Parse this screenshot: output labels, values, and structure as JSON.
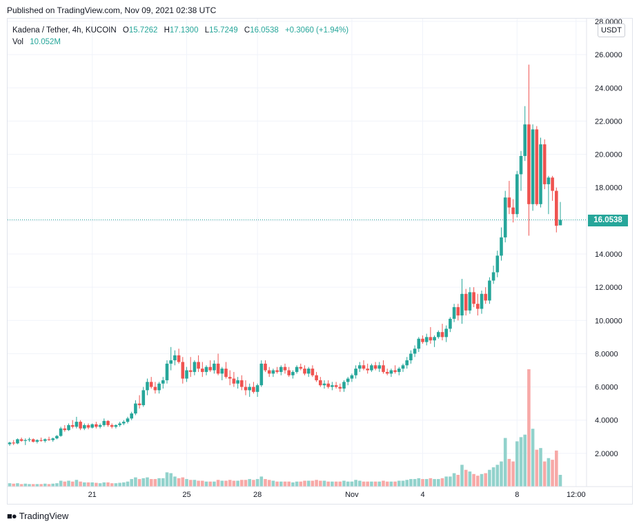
{
  "header": {
    "published": "Published on TradingView.com, Nov 09, 2021 02:38 UTC"
  },
  "legend": {
    "symbol": "Kadena / Tether, 4h, KUCOIN",
    "o_label": "O",
    "o_value": "15.7262",
    "h_label": "H",
    "h_value": "17.1300",
    "l_label": "L",
    "l_value": "15.7249",
    "c_label": "C",
    "c_value": "16.0538",
    "change": "+0.3060 (+1.94%)",
    "vol_label": "Vol",
    "vol_value": "10.052M"
  },
  "price_axis": {
    "currency": "USDT",
    "last_price_label": "16.0538"
  },
  "footer": {
    "brand": "TradingView"
  },
  "colors": {
    "up": "#26a69a",
    "down": "#ef5350",
    "up_volume": "#92d2cc",
    "down_volume": "#f7a9a7",
    "grid": "#f0f3fa"
  },
  "chart_data": {
    "type": "candlestick",
    "symbol": "Kadena / Tether",
    "interval": "4h",
    "exchange": "KUCOIN",
    "last_price": 16.0538,
    "ylim": [
      0,
      28
    ],
    "y_ticks": [
      "2.0000",
      "4.0000",
      "6.0000",
      "8.0000",
      "10.0000",
      "12.0000",
      "14.0000",
      "16.0000",
      "18.0000",
      "20.0000",
      "22.0000",
      "24.0000",
      "26.0000",
      "28.0000"
    ],
    "y_tick_values": [
      2,
      4,
      6,
      8,
      10,
      12,
      14,
      16,
      18,
      20,
      22,
      24,
      26,
      28
    ],
    "x_ticks": [
      {
        "label": "21",
        "bar": 21
      },
      {
        "label": "25",
        "bar": 45
      },
      {
        "label": "28",
        "bar": 63
      },
      {
        "label": "Nov",
        "bar": 87
      },
      {
        "label": "4",
        "bar": 105
      },
      {
        "label": "8",
        "bar": 129
      },
      {
        "label": "12:00",
        "bar": 144
      }
    ],
    "grid": true,
    "ohlcv": [
      [
        2.55,
        2.7,
        2.45,
        2.65,
        0.4
      ],
      [
        2.65,
        2.8,
        2.5,
        2.6,
        0.35
      ],
      [
        2.6,
        2.9,
        2.55,
        2.85,
        0.4
      ],
      [
        2.85,
        2.95,
        2.7,
        2.75,
        0.3
      ],
      [
        2.75,
        2.9,
        2.5,
        2.8,
        0.35
      ],
      [
        2.8,
        2.95,
        2.7,
        2.85,
        0.3
      ],
      [
        2.85,
        2.9,
        2.65,
        2.7,
        0.3
      ],
      [
        2.7,
        2.85,
        2.6,
        2.8,
        0.3
      ],
      [
        2.8,
        2.95,
        2.7,
        2.75,
        0.3
      ],
      [
        2.75,
        2.9,
        2.65,
        2.85,
        0.35
      ],
      [
        2.85,
        3.0,
        2.75,
        2.8,
        0.3
      ],
      [
        2.8,
        2.95,
        2.7,
        2.9,
        0.35
      ],
      [
        2.9,
        3.1,
        2.85,
        3.05,
        0.4
      ],
      [
        3.05,
        3.6,
        3.0,
        3.5,
        0.7
      ],
      [
        3.5,
        3.7,
        3.3,
        3.4,
        0.6
      ],
      [
        3.4,
        3.8,
        3.35,
        3.7,
        0.7
      ],
      [
        3.7,
        4.0,
        3.5,
        3.6,
        0.6
      ],
      [
        3.6,
        4.2,
        3.5,
        3.9,
        0.8
      ],
      [
        3.9,
        4.0,
        3.4,
        3.5,
        0.6
      ],
      [
        3.5,
        3.8,
        3.4,
        3.7,
        0.5
      ],
      [
        3.7,
        3.8,
        3.45,
        3.55,
        0.5
      ],
      [
        3.55,
        3.8,
        3.5,
        3.75,
        0.5
      ],
      [
        3.75,
        3.9,
        3.5,
        3.6,
        0.45
      ],
      [
        3.6,
        3.8,
        3.5,
        3.7,
        0.4
      ],
      [
        3.7,
        4.1,
        3.6,
        3.95,
        0.5
      ],
      [
        3.95,
        4.0,
        3.6,
        3.7,
        0.5
      ],
      [
        3.7,
        3.8,
        3.5,
        3.6,
        0.4
      ],
      [
        3.6,
        3.75,
        3.5,
        3.7,
        0.4
      ],
      [
        3.7,
        3.9,
        3.6,
        3.8,
        0.45
      ],
      [
        3.8,
        4.0,
        3.7,
        3.9,
        0.5
      ],
      [
        3.9,
        4.2,
        3.8,
        4.1,
        0.6
      ],
      [
        4.1,
        4.5,
        4.0,
        4.4,
        0.9
      ],
      [
        4.4,
        5.2,
        4.3,
        5.0,
        1.1
      ],
      [
        5.0,
        5.5,
        4.7,
        4.9,
        0.9
      ],
      [
        4.9,
        6.0,
        4.8,
        5.8,
        1.0
      ],
      [
        5.8,
        6.5,
        5.5,
        6.3,
        1.1
      ],
      [
        6.3,
        6.6,
        5.9,
        6.0,
        0.9
      ],
      [
        6.0,
        6.3,
        5.6,
        5.8,
        0.9
      ],
      [
        5.8,
        6.3,
        5.6,
        6.2,
        1.0
      ],
      [
        6.2,
        6.6,
        5.9,
        6.4,
        1.0
      ],
      [
        6.4,
        7.6,
        6.2,
        7.4,
        1.7
      ],
      [
        7.4,
        8.4,
        7.0,
        7.6,
        1.6
      ],
      [
        7.6,
        8.2,
        7.3,
        7.9,
        1.2
      ],
      [
        7.9,
        8.3,
        7.4,
        7.5,
        1.0
      ],
      [
        7.5,
        7.8,
        6.2,
        6.5,
        1.1
      ],
      [
        6.5,
        7.2,
        6.3,
        7.0,
        0.9
      ],
      [
        7.0,
        7.8,
        6.6,
        6.9,
        0.8
      ],
      [
        6.9,
        7.6,
        6.7,
        7.5,
        0.8
      ],
      [
        7.5,
        7.9,
        6.9,
        7.1,
        0.7
      ],
      [
        7.1,
        7.5,
        6.6,
        6.9,
        0.7
      ],
      [
        6.9,
        7.3,
        6.7,
        7.2,
        0.6
      ],
      [
        7.2,
        7.6,
        6.9,
        7.0,
        0.6
      ],
      [
        7.0,
        7.6,
        6.8,
        7.4,
        0.6
      ],
      [
        7.4,
        8.0,
        6.7,
        6.8,
        0.8
      ],
      [
        6.8,
        7.2,
        6.4,
        7.1,
        0.7
      ],
      [
        7.1,
        7.5,
        6.5,
        6.6,
        0.7
      ],
      [
        6.6,
        7.0,
        6.1,
        6.5,
        0.8
      ],
      [
        6.5,
        6.9,
        6.0,
        6.2,
        0.7
      ],
      [
        6.2,
        6.6,
        5.9,
        6.4,
        0.7
      ],
      [
        6.4,
        6.7,
        5.8,
        6.0,
        0.8
      ],
      [
        6.0,
        6.4,
        5.5,
        5.8,
        0.8
      ],
      [
        5.8,
        6.2,
        5.4,
        6.0,
        0.9
      ],
      [
        6.0,
        6.3,
        5.6,
        5.7,
        0.8
      ],
      [
        5.7,
        6.2,
        5.4,
        6.1,
        0.9
      ],
      [
        6.1,
        7.6,
        6.0,
        7.4,
        1.2
      ],
      [
        7.4,
        7.6,
        6.9,
        7.0,
        0.9
      ],
      [
        7.0,
        7.2,
        6.6,
        6.8,
        0.8
      ],
      [
        6.8,
        7.1,
        6.6,
        7.0,
        0.7
      ],
      [
        7.0,
        7.2,
        6.8,
        6.9,
        0.6
      ],
      [
        6.9,
        7.3,
        6.7,
        7.2,
        0.6
      ],
      [
        7.2,
        7.4,
        6.8,
        7.0,
        0.6
      ],
      [
        7.0,
        7.2,
        6.6,
        6.7,
        0.6
      ],
      [
        6.7,
        7.0,
        6.5,
        6.9,
        0.5
      ],
      [
        6.9,
        7.3,
        6.8,
        7.2,
        0.6
      ],
      [
        7.2,
        7.4,
        7.0,
        7.1,
        0.6
      ],
      [
        7.1,
        7.3,
        6.7,
        6.8,
        0.7
      ],
      [
        6.8,
        7.2,
        6.6,
        7.1,
        0.7
      ],
      [
        7.1,
        7.3,
        6.6,
        6.7,
        0.7
      ],
      [
        6.7,
        6.9,
        6.3,
        6.4,
        0.8
      ],
      [
        6.4,
        6.6,
        6.0,
        6.1,
        0.7
      ],
      [
        6.1,
        6.4,
        5.9,
        6.2,
        0.7
      ],
      [
        6.2,
        6.4,
        5.9,
        6.0,
        0.6
      ],
      [
        6.0,
        6.3,
        5.8,
        6.1,
        0.6
      ],
      [
        6.1,
        6.3,
        5.9,
        6.0,
        0.6
      ],
      [
        6.0,
        6.2,
        5.7,
        5.9,
        0.6
      ],
      [
        5.9,
        6.4,
        5.7,
        6.3,
        0.7
      ],
      [
        6.3,
        6.6,
        6.1,
        6.5,
        0.6
      ],
      [
        6.5,
        6.8,
        6.3,
        6.7,
        0.6
      ],
      [
        6.7,
        7.3,
        6.5,
        7.1,
        0.8
      ],
      [
        7.1,
        7.5,
        6.9,
        7.3,
        0.7
      ],
      [
        7.3,
        7.6,
        7.0,
        7.1,
        0.6
      ],
      [
        7.1,
        7.4,
        6.8,
        7.0,
        0.6
      ],
      [
        7.0,
        7.4,
        6.9,
        7.3,
        0.6
      ],
      [
        7.3,
        7.5,
        7.0,
        7.1,
        0.6
      ],
      [
        7.1,
        7.5,
        6.9,
        7.3,
        0.6
      ],
      [
        7.3,
        7.6,
        6.8,
        6.9,
        0.7
      ],
      [
        6.9,
        7.1,
        6.7,
        6.8,
        0.6
      ],
      [
        6.8,
        7.1,
        6.6,
        7.0,
        0.6
      ],
      [
        7.0,
        7.3,
        6.8,
        6.9,
        0.6
      ],
      [
        6.9,
        7.2,
        6.7,
        7.1,
        0.7
      ],
      [
        7.1,
        7.4,
        6.9,
        7.3,
        0.7
      ],
      [
        7.3,
        7.8,
        7.1,
        7.6,
        0.8
      ],
      [
        7.6,
        8.2,
        7.4,
        8.0,
        0.9
      ],
      [
        8.0,
        8.5,
        7.8,
        8.3,
        0.9
      ],
      [
        8.3,
        9.0,
        8.1,
        8.9,
        1.0
      ],
      [
        8.9,
        9.1,
        8.6,
        8.7,
        0.9
      ],
      [
        8.7,
        9.2,
        8.5,
        9.0,
        0.9
      ],
      [
        9.0,
        9.6,
        8.6,
        8.8,
        1.0
      ],
      [
        8.8,
        9.1,
        8.4,
        9.0,
        0.9
      ],
      [
        9.0,
        9.4,
        8.9,
        9.3,
        0.9
      ],
      [
        9.3,
        9.8,
        8.8,
        9.0,
        1.0
      ],
      [
        9.0,
        9.7,
        8.7,
        9.5,
        1.2
      ],
      [
        9.5,
        10.2,
        9.3,
        10.1,
        1.2
      ],
      [
        10.1,
        11.0,
        9.9,
        10.8,
        1.6
      ],
      [
        10.8,
        11.0,
        10.0,
        10.3,
        1.4
      ],
      [
        10.3,
        12.5,
        9.8,
        11.6,
        2.6
      ],
      [
        11.6,
        11.9,
        10.3,
        10.6,
        2.0
      ],
      [
        10.6,
        12.0,
        10.4,
        11.7,
        1.8
      ],
      [
        11.7,
        12.0,
        10.8,
        11.0,
        1.5
      ],
      [
        11.0,
        11.6,
        10.3,
        10.7,
        1.3
      ],
      [
        10.7,
        11.8,
        10.4,
        11.6,
        1.5
      ],
      [
        11.6,
        12.0,
        11.0,
        11.2,
        1.6
      ],
      [
        11.2,
        12.6,
        11.0,
        12.4,
        2.0
      ],
      [
        12.4,
        13.3,
        12.2,
        12.9,
        2.3
      ],
      [
        12.9,
        14.2,
        12.6,
        13.9,
        2.6
      ],
      [
        13.9,
        15.6,
        13.6,
        15.0,
        3.0
      ],
      [
        15.0,
        17.8,
        14.7,
        17.4,
        5.8
      ],
      [
        17.4,
        18.4,
        16.4,
        16.8,
        3.3
      ],
      [
        16.8,
        17.3,
        15.9,
        16.4,
        3.0
      ],
      [
        16.4,
        19.0,
        16.2,
        18.8,
        5.4
      ],
      [
        18.8,
        20.2,
        17.8,
        19.9,
        5.9
      ],
      [
        19.9,
        22.9,
        19.6,
        21.8,
        6.2
      ],
      [
        21.8,
        25.4,
        15.1,
        17.0,
        14.0
      ],
      [
        17.0,
        21.8,
        16.6,
        21.5,
        6.9
      ],
      [
        21.5,
        21.7,
        16.9,
        17.0,
        4.4
      ],
      [
        17.0,
        21.0,
        16.8,
        20.6,
        4.6
      ],
      [
        20.6,
        20.9,
        17.9,
        18.2,
        3.0
      ],
      [
        18.2,
        18.7,
        16.4,
        18.6,
        3.4
      ],
      [
        18.6,
        18.7,
        17.2,
        17.8,
        3.2
      ],
      [
        17.8,
        18.0,
        15.3,
        15.7,
        4.3
      ],
      [
        15.7262,
        17.13,
        15.7249,
        16.0538,
        1.4
      ]
    ]
  }
}
